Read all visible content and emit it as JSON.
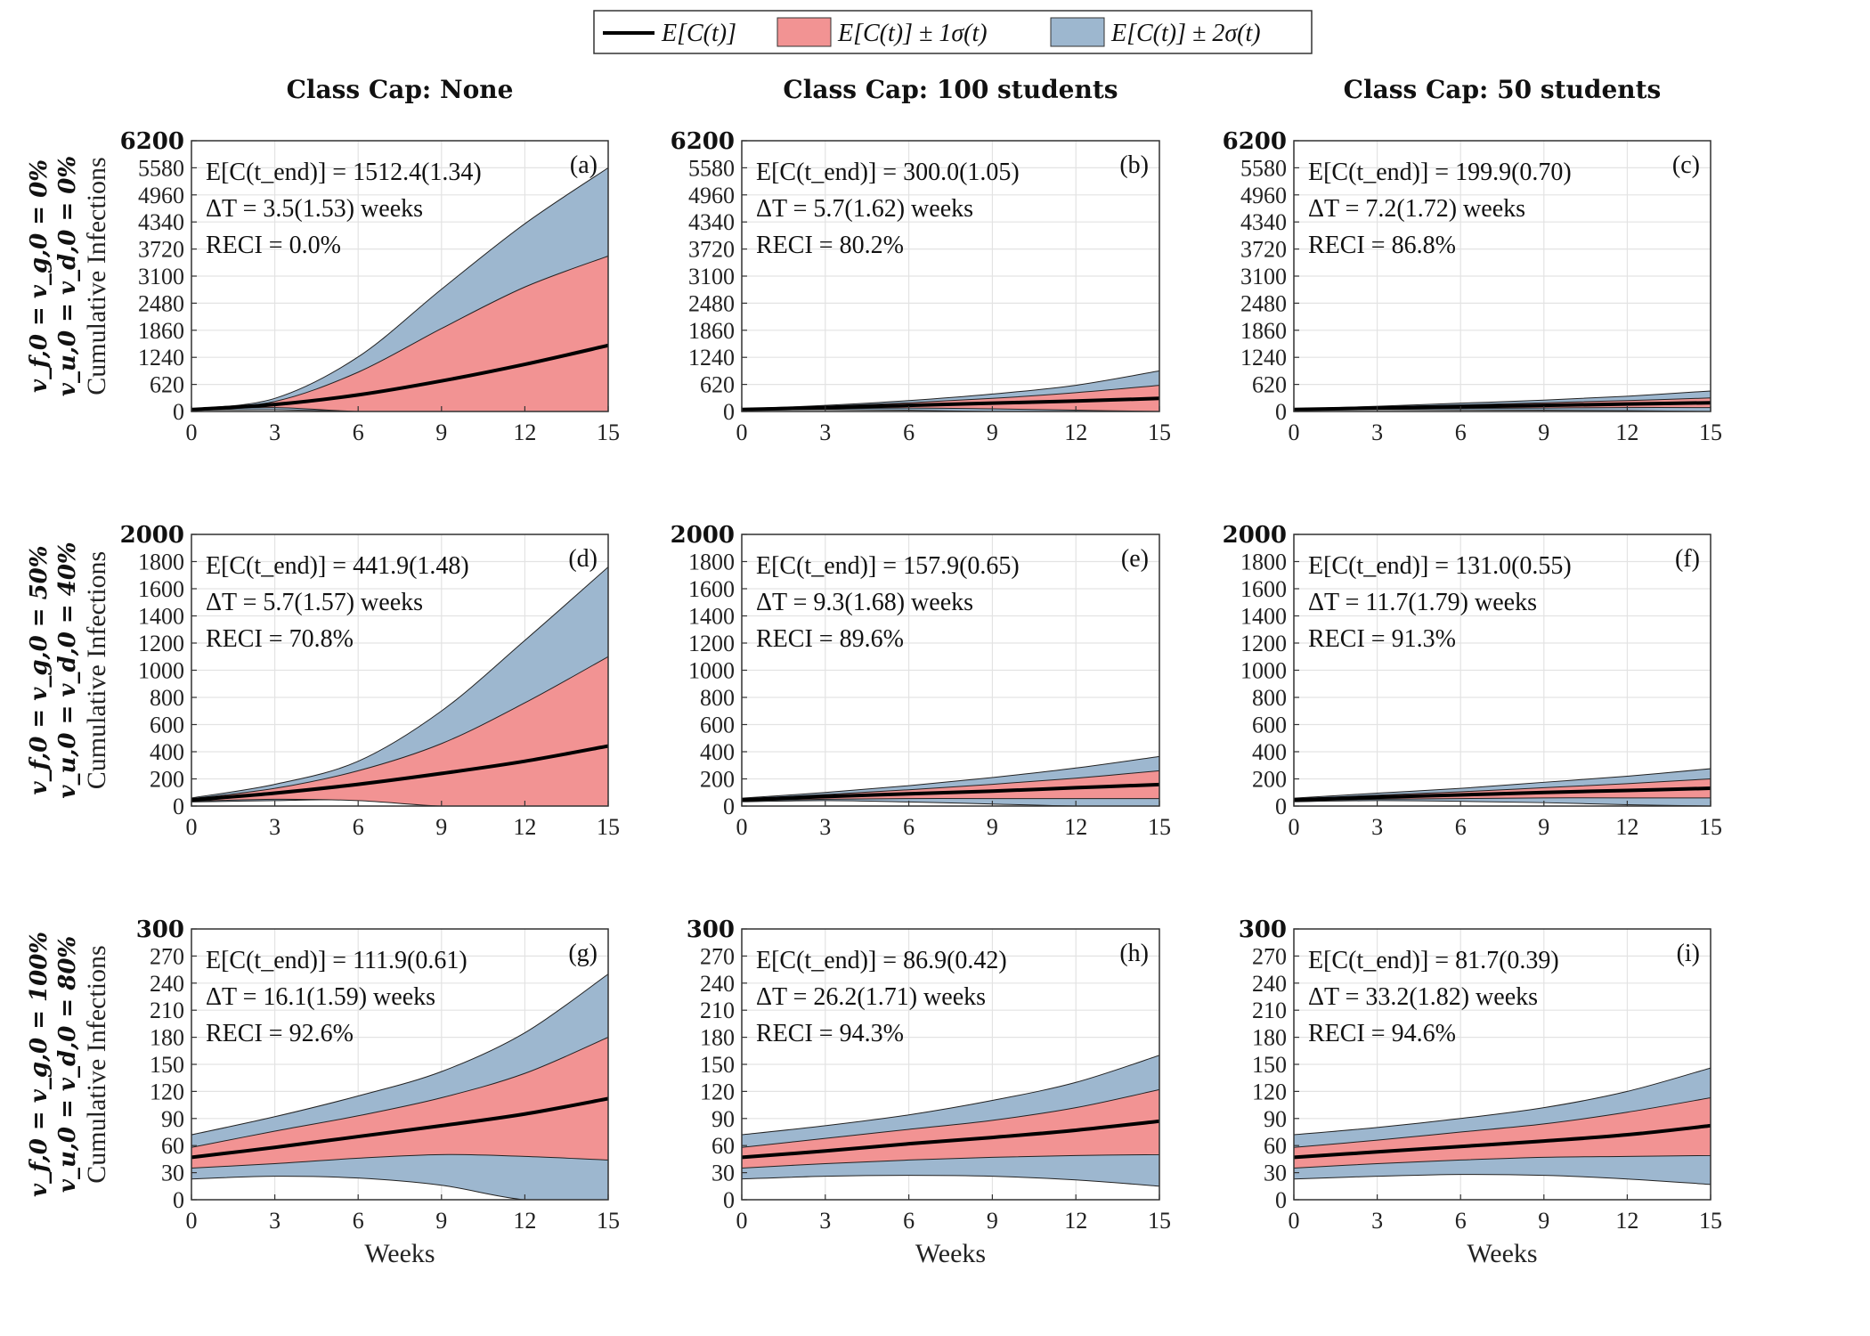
{
  "legend": {
    "position": "top-center",
    "items": [
      {
        "label": "E[C(t)]",
        "kind": "line",
        "color": "#000000"
      },
      {
        "label": "E[C(t)] ± 1σ(t)",
        "kind": "patch",
        "color": "#f29393"
      },
      {
        "label": "E[C(t)] ± 2σ(t)",
        "kind": "patch",
        "color": "#9db7cf"
      }
    ]
  },
  "column_titles": [
    "Class Cap: None",
    "Class Cap: 100 students",
    "Class Cap: 50 students"
  ],
  "row_labels": [
    {
      "line1": "v_f,0 = v_g,0 = 0%",
      "line2": "v_u,0 = v_d,0 = 0%"
    },
    {
      "line1": "v_f,0 = v_g,0 = 50%",
      "line2": "v_u,0 = v_d,0 = 40%"
    },
    {
      "line1": "v_f,0 = v_g,0 = 100%",
      "line2": "v_u,0 = v_d,0 = 80%"
    }
  ],
  "ylabel": "Cumulative Infections",
  "xlabel": "Weeks",
  "colors": {
    "mean": "#000000",
    "band1": "#f29393",
    "band2": "#9db7cf",
    "grid": "#e3e3e3"
  },
  "chart_data": [
    {
      "type": "area",
      "panel": "(a)",
      "x": [
        0,
        3,
        6,
        9,
        12,
        15
      ],
      "mean": [
        45,
        160,
        380,
        700,
        1080,
        1512
      ],
      "band1_upper": [
        55,
        230,
        900,
        1900,
        2850,
        3560
      ],
      "band1_lower": [
        35,
        90,
        0,
        0,
        0,
        0
      ],
      "band2_upper": [
        60,
        300,
        1250,
        2800,
        4300,
        5580
      ],
      "band2_lower": [
        30,
        40,
        0,
        0,
        0,
        0
      ],
      "xlim": [
        0,
        15
      ],
      "ylim": [
        0,
        6200
      ],
      "xticks": [
        0,
        3,
        6,
        9,
        12,
        15
      ],
      "yticks": [
        0,
        620,
        1240,
        1860,
        2480,
        3100,
        3720,
        4340,
        4960,
        5580,
        6200
      ],
      "ann": [
        "E[C(t_end)] = 1512.4(1.34)",
        "ΔT = 3.5(1.53) weeks",
        "RECI = 0.0%"
      ]
    },
    {
      "type": "area",
      "panel": "(b)",
      "x": [
        0,
        3,
        6,
        9,
        12,
        15
      ],
      "mean": [
        45,
        90,
        140,
        190,
        240,
        300
      ],
      "band1_upper": [
        55,
        120,
        200,
        300,
        430,
        600
      ],
      "band1_lower": [
        35,
        60,
        80,
        60,
        30,
        0
      ],
      "band2_upper": [
        60,
        140,
        250,
        400,
        600,
        930
      ],
      "band2_lower": [
        30,
        40,
        30,
        0,
        0,
        0
      ],
      "xlim": [
        0,
        15
      ],
      "ylim": [
        0,
        6200
      ],
      "xticks": [
        0,
        3,
        6,
        9,
        12,
        15
      ],
      "yticks": [
        0,
        620,
        1240,
        1860,
        2480,
        3100,
        3720,
        4340,
        4960,
        5580,
        6200
      ],
      "ann": [
        "E[C(t_end)] = 300.0(1.05)",
        "ΔT = 5.7(1.62) weeks",
        "RECI = 80.2%"
      ]
    },
    {
      "type": "area",
      "panel": "(c)",
      "x": [
        0,
        3,
        6,
        9,
        12,
        15
      ],
      "mean": [
        45,
        80,
        110,
        140,
        170,
        200
      ],
      "band1_upper": [
        52,
        100,
        150,
        200,
        250,
        310
      ],
      "band1_lower": [
        38,
        60,
        70,
        80,
        90,
        90
      ],
      "band2_upper": [
        58,
        120,
        190,
        260,
        350,
        470
      ],
      "band2_lower": [
        32,
        40,
        35,
        30,
        20,
        0
      ],
      "xlim": [
        0,
        15
      ],
      "ylim": [
        0,
        6200
      ],
      "xticks": [
        0,
        3,
        6,
        9,
        12,
        15
      ],
      "yticks": [
        0,
        620,
        1240,
        1860,
        2480,
        3100,
        3720,
        4340,
        4960,
        5580,
        6200
      ],
      "ann": [
        "E[C(t_end)] = 199.9(0.70)",
        "ΔT = 7.2(1.72) weeks",
        "RECI = 86.8%"
      ]
    },
    {
      "type": "area",
      "panel": "(d)",
      "x": [
        0,
        3,
        6,
        9,
        12,
        15
      ],
      "mean": [
        45,
        95,
        160,
        240,
        330,
        442
      ],
      "band1_upper": [
        55,
        130,
        260,
        460,
        760,
        1100
      ],
      "band1_lower": [
        35,
        50,
        40,
        0,
        0,
        0
      ],
      "band2_upper": [
        60,
        160,
        330,
        700,
        1220,
        1760
      ],
      "band2_lower": [
        30,
        40,
        45,
        0,
        0,
        0
      ],
      "xlim": [
        0,
        15
      ],
      "ylim": [
        0,
        2000
      ],
      "xticks": [
        0,
        3,
        6,
        9,
        12,
        15
      ],
      "yticks": [
        0,
        200,
        400,
        600,
        800,
        1000,
        1200,
        1400,
        1600,
        1800,
        2000
      ],
      "ann": [
        "E[C(t_end)] = 441.9(1.48)",
        "ΔT = 5.7(1.57) weeks",
        "RECI = 70.8%"
      ]
    },
    {
      "type": "area",
      "panel": "(e)",
      "x": [
        0,
        3,
        6,
        9,
        12,
        15
      ],
      "mean": [
        45,
        70,
        90,
        110,
        135,
        158
      ],
      "band1_upper": [
        52,
        85,
        120,
        160,
        205,
        260
      ],
      "band1_lower": [
        38,
        50,
        55,
        55,
        55,
        55
      ],
      "band2_upper": [
        58,
        100,
        150,
        210,
        280,
        365
      ],
      "band2_lower": [
        32,
        40,
        30,
        15,
        0,
        0
      ],
      "xlim": [
        0,
        15
      ],
      "ylim": [
        0,
        2000
      ],
      "xticks": [
        0,
        3,
        6,
        9,
        12,
        15
      ],
      "yticks": [
        0,
        200,
        400,
        600,
        800,
        1000,
        1200,
        1400,
        1600,
        1800,
        2000
      ],
      "ann": [
        "E[C(t_end)] = 157.9(0.65)",
        "ΔT = 9.3(1.68) weeks",
        "RECI = 89.6%"
      ]
    },
    {
      "type": "area",
      "panel": "(f)",
      "x": [
        0,
        3,
        6,
        9,
        12,
        15
      ],
      "mean": [
        45,
        65,
        82,
        100,
        115,
        131
      ],
      "band1_upper": [
        52,
        80,
        105,
        135,
        165,
        200
      ],
      "band1_lower": [
        38,
        50,
        55,
        60,
        60,
        60
      ],
      "band2_upper": [
        58,
        95,
        130,
        175,
        220,
        275
      ],
      "band2_lower": [
        32,
        40,
        35,
        25,
        10,
        0
      ],
      "xlim": [
        0,
        15
      ],
      "ylim": [
        0,
        2000
      ],
      "xticks": [
        0,
        3,
        6,
        9,
        12,
        15
      ],
      "yticks": [
        0,
        200,
        400,
        600,
        800,
        1000,
        1200,
        1400,
        1600,
        1800,
        2000
      ],
      "ann": [
        "E[C(t_end)] = 131.0(0.55)",
        "ΔT = 11.7(1.79) weeks",
        "RECI = 91.3%"
      ]
    },
    {
      "type": "area",
      "panel": "(g)",
      "x": [
        0,
        3,
        6,
        9,
        12,
        15
      ],
      "mean": [
        47,
        58,
        70,
        82,
        95,
        112
      ],
      "band1_upper": [
        58,
        76,
        93,
        113,
        140,
        180
      ],
      "band1_lower": [
        35,
        40,
        46,
        50,
        48,
        44
      ],
      "band2_upper": [
        72,
        92,
        115,
        142,
        185,
        250
      ],
      "band2_lower": [
        23,
        26,
        24,
        16,
        0,
        0
      ],
      "xlim": [
        0,
        15
      ],
      "ylim": [
        0,
        300
      ],
      "xticks": [
        0,
        3,
        6,
        9,
        12,
        15
      ],
      "yticks": [
        0,
        30,
        60,
        90,
        120,
        150,
        180,
        210,
        240,
        270,
        300
      ],
      "ann": [
        "E[C(t_end)] = 111.9(0.61)",
        "ΔT = 16.1(1.59) weeks",
        "RECI = 92.6%"
      ]
    },
    {
      "type": "area",
      "panel": "(h)",
      "x": [
        0,
        3,
        6,
        9,
        12,
        15
      ],
      "mean": [
        47,
        54,
        62,
        69,
        77,
        87
      ],
      "band1_upper": [
        58,
        68,
        78,
        88,
        102,
        122
      ],
      "band1_lower": [
        35,
        40,
        44,
        47,
        49,
        50
      ],
      "band2_upper": [
        72,
        82,
        94,
        110,
        130,
        160
      ],
      "band2_lower": [
        23,
        26,
        27,
        26,
        22,
        15
      ],
      "xlim": [
        0,
        15
      ],
      "ylim": [
        0,
        300
      ],
      "xticks": [
        0,
        3,
        6,
        9,
        12,
        15
      ],
      "yticks": [
        0,
        30,
        60,
        90,
        120,
        150,
        180,
        210,
        240,
        270,
        300
      ],
      "ann": [
        "E[C(t_end)] = 86.9(0.42)",
        "ΔT = 26.2(1.71) weeks",
        "RECI = 94.3%"
      ]
    },
    {
      "type": "area",
      "panel": "(i)",
      "x": [
        0,
        3,
        6,
        9,
        12,
        15
      ],
      "mean": [
        47,
        53,
        59,
        65,
        72,
        82
      ],
      "band1_upper": [
        58,
        66,
        75,
        84,
        97,
        113
      ],
      "band1_lower": [
        35,
        40,
        44,
        47,
        48,
        49
      ],
      "band2_upper": [
        72,
        80,
        90,
        102,
        120,
        146
      ],
      "band2_lower": [
        23,
        26,
        28,
        27,
        23,
        17
      ],
      "xlim": [
        0,
        15
      ],
      "ylim": [
        0,
        300
      ],
      "xticks": [
        0,
        3,
        6,
        9,
        12,
        15
      ],
      "yticks": [
        0,
        30,
        60,
        90,
        120,
        150,
        180,
        210,
        240,
        270,
        300
      ],
      "ann": [
        "E[C(t_end)] = 81.7(0.39)",
        "ΔT = 33.2(1.82) weeks",
        "RECI = 94.6%"
      ]
    }
  ]
}
